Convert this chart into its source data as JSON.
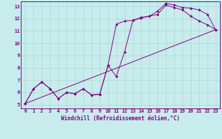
{
  "xlabel": "Windchill (Refroidissement éolien,°C)",
  "ylabel": "",
  "background_color": "#c8ecec",
  "grid_color": "#b0d8d8",
  "line_color": "#800080",
  "spine_color": "#800080",
  "xlim": [
    -0.5,
    23.5
  ],
  "ylim": [
    4.7,
    13.4
  ],
  "xticks": [
    0,
    1,
    2,
    3,
    4,
    5,
    6,
    7,
    8,
    9,
    10,
    11,
    12,
    13,
    14,
    15,
    16,
    17,
    18,
    19,
    20,
    21,
    22,
    23
  ],
  "yticks": [
    5,
    6,
    7,
    8,
    9,
    10,
    11,
    12,
    13
  ],
  "line1_x": [
    0,
    1,
    2,
    3,
    4,
    5,
    6,
    7,
    8,
    9,
    10,
    11,
    12,
    13,
    14,
    15,
    16,
    17,
    18,
    19,
    20,
    21,
    22,
    23
  ],
  "line1_y": [
    5.1,
    6.3,
    6.85,
    6.3,
    5.5,
    6.0,
    5.9,
    6.3,
    5.8,
    5.85,
    8.2,
    7.3,
    9.3,
    11.85,
    12.1,
    12.2,
    12.6,
    13.25,
    13.1,
    12.9,
    12.85,
    12.7,
    12.35,
    11.1
  ],
  "line2_x": [
    0,
    1,
    2,
    3,
    4,
    5,
    6,
    7,
    8,
    9,
    10,
    11,
    12,
    13,
    14,
    15,
    16,
    17,
    18,
    19,
    20,
    21,
    22,
    23
  ],
  "line2_y": [
    5.1,
    6.3,
    6.85,
    6.3,
    5.5,
    6.0,
    5.9,
    6.3,
    5.8,
    5.85,
    8.2,
    11.55,
    11.8,
    11.85,
    12.05,
    12.2,
    12.35,
    13.1,
    12.9,
    12.7,
    12.2,
    11.8,
    11.5,
    11.1
  ],
  "line3_x": [
    0,
    23
  ],
  "line3_y": [
    5.1,
    11.1
  ],
  "tick_fontsize": 5.0,
  "xlabel_fontsize": 5.5
}
